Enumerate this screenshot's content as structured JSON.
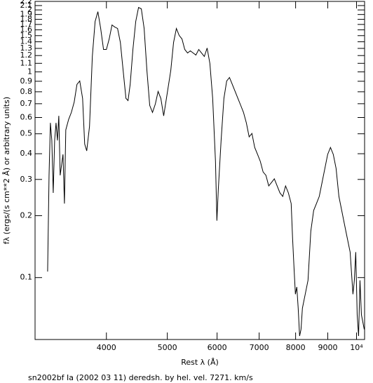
{
  "chart_data": {
    "type": "line",
    "title": "sn2002bf Ia (2002 03 11) deredsh. by hel. vel.  7271. km/s",
    "x_label": "Rest λ (Å)",
    "y_label": "fλ (ergs/(s cm**2 Å) or arbitrary units)",
    "x_log": true,
    "y_log": true,
    "xlim": [
      3080,
      10300
    ],
    "ylim": [
      0.05,
      2.2
    ],
    "xticks": [
      4000,
      5000,
      6000,
      7000,
      8000,
      9000,
      {
        "value": 10000,
        "label": "10⁴"
      }
    ],
    "yticks": [
      0.1,
      0.2,
      0.3,
      0.4,
      0.5,
      0.6,
      0.7,
      0.8,
      0.9,
      1,
      1.1,
      1.2,
      1.3,
      1.4,
      1.5,
      1.6,
      1.7,
      1.8,
      1.9,
      2,
      2.1,
      2.2
    ],
    "x": [
      3225,
      3242,
      3258,
      3275,
      3292,
      3309,
      3326,
      3343,
      3360,
      3377,
      3412,
      3430,
      3447,
      3483,
      3518,
      3555,
      3591,
      3628,
      3666,
      3694,
      3722,
      3760,
      3799,
      3838,
      3877,
      3917,
      3958,
      4000,
      4041,
      4083,
      4125,
      4167,
      4210,
      4253,
      4297,
      4330,
      4364,
      4408,
      4454,
      4500,
      4546,
      4593,
      4640,
      4688,
      4736,
      4785,
      4834,
      4883,
      4934,
      4984,
      5064,
      5116,
      5169,
      5222,
      5276,
      5330,
      5385,
      5440,
      5496,
      5552,
      5610,
      5668,
      5726,
      5785,
      5844,
      5904,
      5965,
      5996,
      6027,
      6089,
      6152,
      6215,
      6279,
      6344,
      6410,
      6476,
      6543,
      6610,
      6679,
      6748,
      6817,
      6887,
      6959,
      7030,
      7102,
      7176,
      7250,
      7325,
      7400,
      7477,
      7554,
      7632,
      7711,
      7791,
      7871,
      7912,
      7952,
      7994,
      8035,
      8076,
      8118,
      8160,
      8202,
      8287,
      8372,
      8458,
      8547,
      8635,
      8724,
      8814,
      8905,
      8997,
      9090,
      9184,
      9279,
      9375,
      9472,
      9570,
      9669,
      9769,
      9870,
      9921,
      9972,
      10024,
      10076,
      10128,
      10181,
      10287
    ],
    "series": [
      {
        "color": "#000000",
        "values": [
          0.107,
          0.314,
          0.565,
          0.464,
          0.258,
          0.464,
          0.565,
          0.464,
          0.611,
          0.314,
          0.397,
          0.229,
          0.522,
          0.587,
          0.635,
          0.714,
          0.869,
          0.903,
          0.743,
          0.446,
          0.413,
          0.543,
          1.188,
          1.758,
          1.962,
          1.625,
          1.285,
          1.285,
          1.445,
          1.69,
          1.651,
          1.625,
          1.39,
          1.016,
          0.743,
          0.725,
          0.869,
          1.285,
          1.758,
          2.056,
          2.024,
          1.625,
          1.016,
          0.687,
          0.635,
          0.697,
          0.803,
          0.743,
          0.611,
          0.743,
          1.016,
          1.39,
          1.625,
          1.503,
          1.445,
          1.285,
          1.235,
          1.265,
          1.235,
          1.207,
          1.285,
          1.235,
          1.188,
          1.305,
          1.098,
          0.743,
          0.367,
          0.189,
          0.268,
          0.464,
          0.743,
          0.903,
          0.939,
          0.869,
          0.803,
          0.743,
          0.687,
          0.635,
          0.565,
          0.483,
          0.502,
          0.429,
          0.397,
          0.367,
          0.326,
          0.314,
          0.279,
          0.29,
          0.302,
          0.279,
          0.258,
          0.248,
          0.279,
          0.258,
          0.229,
          0.155,
          0.113,
          0.083,
          0.09,
          0.071,
          0.052,
          0.056,
          0.071,
          0.083,
          0.097,
          0.168,
          0.212,
          0.229,
          0.248,
          0.29,
          0.339,
          0.397,
          0.429,
          0.397,
          0.339,
          0.248,
          0.212,
          0.181,
          0.155,
          0.133,
          0.083,
          0.097,
          0.133,
          0.066,
          0.052,
          0.097,
          0.066,
          0.056
        ]
      }
    ]
  }
}
